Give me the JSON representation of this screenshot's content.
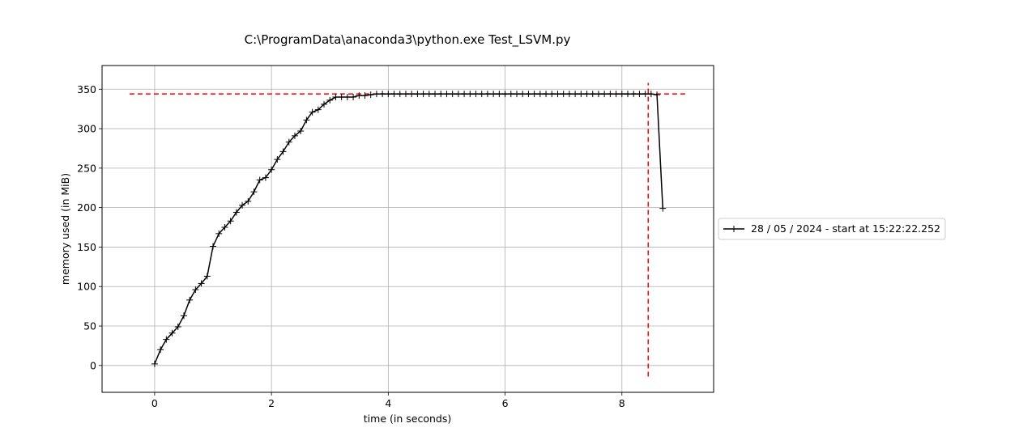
{
  "chart_data": {
    "type": "line",
    "title": "C:\\ProgramData\\anaconda3\\python.exe Test_LSVM.py",
    "xlabel": "time (in seconds)",
    "ylabel": "memory used (in MiB)",
    "xlim": [
      -0.9,
      9.57
    ],
    "ylim": [
      -34,
      380
    ],
    "xticks": [
      0,
      2,
      4,
      6,
      8
    ],
    "yticks": [
      0,
      50,
      100,
      150,
      200,
      250,
      300,
      350
    ],
    "grid": true,
    "legend_position": "right",
    "series": [
      {
        "name": "28 / 05 / 2024 - start at 15:22:22.252",
        "color": "#000000",
        "marker": "plus",
        "x": [
          0.0,
          0.1,
          0.2,
          0.3,
          0.4,
          0.5,
          0.6,
          0.7,
          0.8,
          0.9,
          1.0,
          1.1,
          1.2,
          1.3,
          1.4,
          1.5,
          1.6,
          1.7,
          1.8,
          1.9,
          2.0,
          2.1,
          2.2,
          2.3,
          2.4,
          2.5,
          2.6,
          2.7,
          2.8,
          2.9,
          3.0,
          3.1,
          3.2,
          3.3,
          3.4,
          3.5,
          3.6,
          3.7,
          3.8,
          3.9,
          4.0,
          4.1,
          4.2,
          4.3,
          4.4,
          4.5,
          4.6,
          4.7,
          4.8,
          4.9,
          5.0,
          5.1,
          5.2,
          5.3,
          5.4,
          5.5,
          5.6,
          5.7,
          5.8,
          5.9,
          6.0,
          6.1,
          6.2,
          6.3,
          6.4,
          6.5,
          6.6,
          6.7,
          6.8,
          6.9,
          7.0,
          7.1,
          7.2,
          7.3,
          7.4,
          7.5,
          7.6,
          7.7,
          7.8,
          7.9,
          8.0,
          8.1,
          8.2,
          8.3,
          8.4,
          8.5,
          8.6,
          8.7
        ],
        "y": [
          2,
          20,
          33,
          41,
          49,
          63,
          83,
          96,
          104,
          113,
          151,
          167,
          175,
          183,
          194,
          203,
          208,
          220,
          235,
          238,
          248,
          261,
          271,
          283,
          291,
          297,
          311,
          321,
          324,
          331,
          336,
          340,
          340,
          340,
          340,
          342,
          342,
          343,
          344,
          344,
          344,
          344,
          344,
          344,
          344,
          344,
          344,
          344,
          344,
          344,
          344,
          344,
          344,
          344,
          344,
          344,
          344,
          344,
          344,
          344,
          344,
          344,
          344,
          344,
          344,
          344,
          344,
          344,
          344,
          344,
          344,
          344,
          344,
          344,
          344,
          344,
          344,
          344,
          344,
          344,
          344,
          344,
          344,
          344,
          344,
          344,
          343,
          199
        ]
      }
    ],
    "reference_lines": [
      {
        "orientation": "horizontal",
        "value": 344,
        "from": -0.43,
        "to": 9.1,
        "color": "#ff0000",
        "style": "dashed"
      },
      {
        "orientation": "vertical",
        "value": 8.45,
        "from": -14,
        "to": 358,
        "color": "#ff0000",
        "style": "dashed"
      }
    ]
  }
}
